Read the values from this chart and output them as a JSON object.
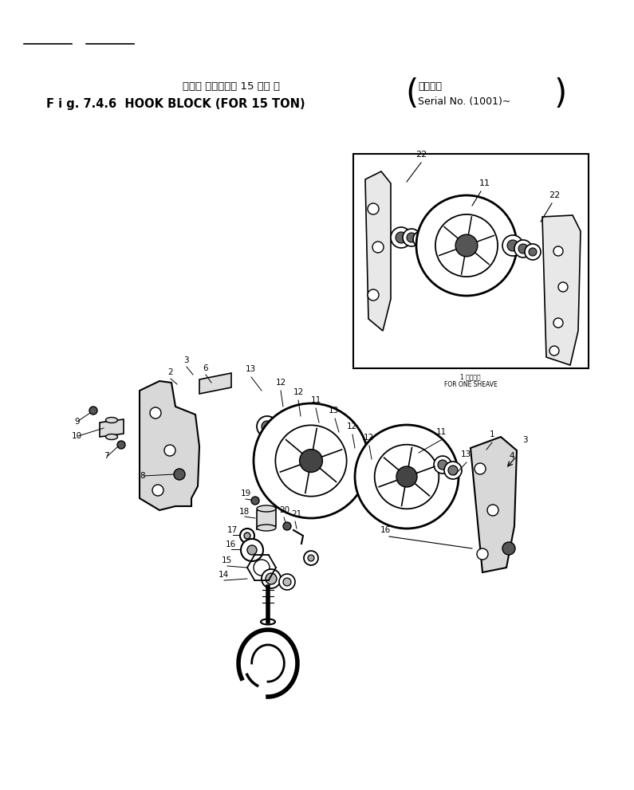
{
  "title_jp": "フック ブロック　 15 トン 用",
  "title_en": "F i g. 7.4.6  HOOK BLOCK (FOR 15 TON)",
  "serial_line1": "適用号機",
  "serial_line2": "Serial No. (1001)~",
  "for_one_sheave_jp": "1 シーブ用",
  "for_one_sheave_en": "FOR ONE SHEAVE",
  "bg_color": "#ffffff",
  "line_color": "#000000",
  "text_color": "#000000",
  "fig_width": 7.95,
  "fig_height": 9.91,
  "dpi": 100
}
